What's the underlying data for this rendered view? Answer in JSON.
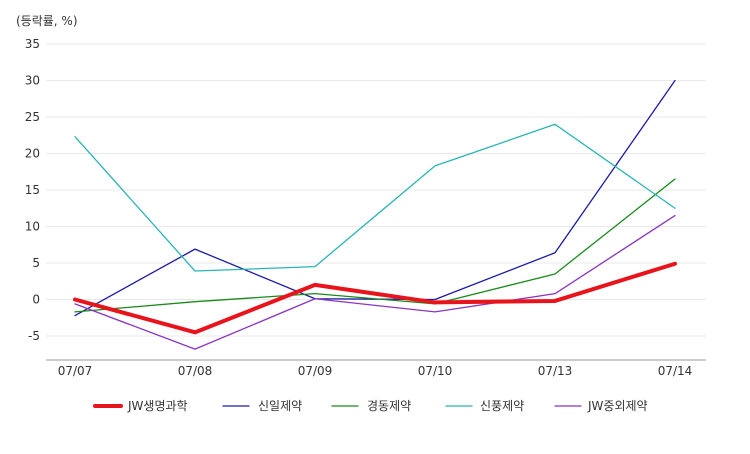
{
  "chart_data": {
    "type": "line",
    "unit_label": "(등락률, %)",
    "categories": [
      "07/07",
      "07/08",
      "07/09",
      "07/10",
      "07/13",
      "07/14"
    ],
    "ylim": [
      -8,
      35
    ],
    "yticks": [
      35,
      30,
      25,
      20,
      15,
      10,
      5,
      0,
      -5
    ],
    "grid": true,
    "legend_position": "bottom",
    "series": [
      {
        "name": "JW생명과학",
        "color": "#e8141c",
        "values": [
          0,
          -4.5,
          2,
          -0.4,
          -0.2,
          4.9
        ],
        "emphasis": true
      },
      {
        "name": "신일제약",
        "color": "#1a1aa8",
        "values": [
          -2.2,
          6.9,
          0.1,
          0,
          6.4,
          30
        ]
      },
      {
        "name": "경동제약",
        "color": "#1a8a1a",
        "values": [
          -1.7,
          -0.3,
          0.8,
          -0.6,
          3.5,
          16.5
        ]
      },
      {
        "name": "신풍제약",
        "color": "#2ab5b5",
        "values": [
          22.3,
          3.9,
          4.5,
          18.3,
          24,
          12.5
        ]
      },
      {
        "name": "JW중외제약",
        "color": "#8a35c0",
        "values": [
          -0.6,
          -6.8,
          0.1,
          -1.7,
          0.8,
          11.5
        ]
      }
    ]
  }
}
